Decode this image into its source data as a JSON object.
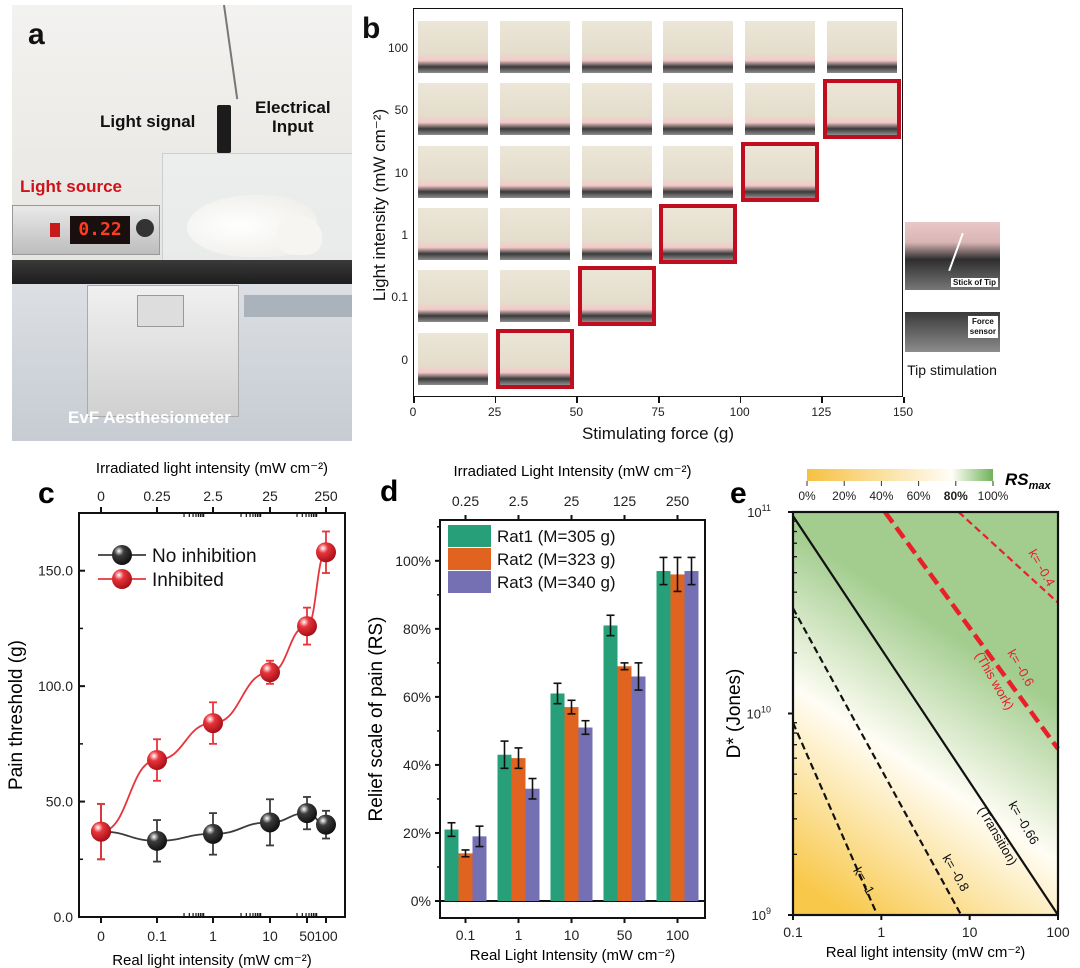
{
  "panels": {
    "a": {
      "letter": "a",
      "labels": {
        "light_signal": "Light signal",
        "electrical_input_line1": "Electrical",
        "electrical_input_line2": "Input",
        "light_source": "Light source",
        "display_value": "0.22",
        "aesthesiometer": "EvF Aesthesiometer"
      },
      "colors": {
        "light_source_label": "#d0121b",
        "display": "#ff3b22"
      }
    },
    "b": {
      "letter": "b",
      "xlabel": "Stimulating force (g)",
      "ylabel": "Light intensity (mW cm⁻²)",
      "x_ticks": [
        "0",
        "25",
        "50",
        "75",
        "100",
        "125",
        "150"
      ],
      "y_ticks": [
        "100",
        "50",
        "10",
        "1",
        "0.1",
        "0"
      ],
      "rows": [
        {
          "intensity": "100",
          "thumb_count": 6,
          "threshold_index": null
        },
        {
          "intensity": "50",
          "thumb_count": 6,
          "threshold_index": 5
        },
        {
          "intensity": "10",
          "thumb_count": 5,
          "threshold_index": 4
        },
        {
          "intensity": "1",
          "thumb_count": 4,
          "threshold_index": 3
        },
        {
          "intensity": "0.1",
          "thumb_count": 3,
          "threshold_index": 2
        },
        {
          "intensity": "0",
          "thumb_count": 2,
          "threshold_index": 1
        }
      ],
      "inset": {
        "stick_label": "Stick of Tip",
        "sensor_label_line1": "Force",
        "sensor_label_line2": "sensor",
        "caption": "Tip stimulation"
      },
      "colors": {
        "highlight": "#c00d1f"
      }
    }
  },
  "chart_data": [
    {
      "id": "c",
      "letter": "c",
      "type": "line",
      "title": "",
      "xlabel": "Real light intensity (mW cm⁻²)",
      "x2label": "Irradiated light intensity (mW cm⁻²)",
      "ylabel": "Pain threshold (g)",
      "x": [
        "0",
        "0.1",
        "1",
        "10",
        "50",
        "100"
      ],
      "x_top_ticks": [
        "0",
        "0.25",
        "2.5",
        "25",
        "250"
      ],
      "y_ticks": [
        "0.0",
        "50.0",
        "100.0",
        "150.0"
      ],
      "ylim": [
        0,
        175
      ],
      "series": [
        {
          "name": "No inhibition",
          "color": "#3c3c3c",
          "values": [
            37,
            33,
            36,
            41,
            45,
            40
          ],
          "errors": [
            12,
            9,
            9,
            10,
            7,
            6
          ]
        },
        {
          "name": "Inhibited",
          "color": "#e8343b",
          "values": [
            37,
            68,
            84,
            106,
            126,
            158
          ],
          "errors": [
            12,
            9,
            9,
            5,
            8,
            9
          ]
        }
      ],
      "legend": "top-left"
    },
    {
      "id": "d",
      "letter": "d",
      "type": "bar",
      "xlabel": "Real Light Intensity (mW cm⁻²)",
      "x2label": "Irradiated Light Intensity (mW cm⁻²)",
      "ylabel": "Relief scale of pain (RS)",
      "categories": [
        "0.1",
        "1",
        "10",
        "50",
        "100"
      ],
      "top_categories": [
        "0.25",
        "2.5",
        "25",
        "125",
        "250"
      ],
      "y_ticks": [
        "0%",
        "20%",
        "40%",
        "60%",
        "80%",
        "100%"
      ],
      "ylim": [
        -5,
        112
      ],
      "series": [
        {
          "name": "Rat1 (M=305 g)",
          "color": "#27a07a",
          "values": [
            21,
            43,
            61,
            81,
            97
          ],
          "errors": [
            2,
            4,
            3,
            3,
            4
          ]
        },
        {
          "name": "Rat2 (M=323 g)",
          "color": "#e06420",
          "values": [
            14,
            42,
            57,
            69,
            96
          ],
          "errors": [
            1,
            3,
            2,
            1,
            5
          ]
        },
        {
          "name": "Rat3 (M=340 g)",
          "color": "#7570b3",
          "values": [
            19,
            33,
            51,
            66,
            97
          ],
          "errors": [
            3,
            3,
            2,
            4,
            4
          ]
        }
      ],
      "legend": "top-left"
    },
    {
      "id": "e",
      "letter": "e",
      "type": "heatmap",
      "xlabel": "Real light intensity (mW cm⁻²)",
      "ylabel": "D* (Jones)",
      "x_scale": "log",
      "y_scale": "log",
      "xlim": [
        0.1,
        100
      ],
      "ylim": [
        1000000000.0,
        100000000000.0
      ],
      "x_ticks": [
        "0.1",
        "1",
        "10",
        "100"
      ],
      "y_ticks": [
        {
          "base": "10",
          "exp": "9",
          "value": 1000000000.0
        },
        {
          "base": "10",
          "exp": "10",
          "value": 10000000000.0
        },
        {
          "base": "10",
          "exp": "11",
          "value": 100000000000.0
        }
      ],
      "colorbar": {
        "title_main": "RS",
        "title_sub": "max",
        "ticks": [
          "0%",
          "20%",
          "40%",
          "60%",
          "80%",
          "100%"
        ],
        "bold_tick": "80%",
        "colors": [
          "#f6c142",
          "#fffdf6",
          "#6fb35a"
        ]
      },
      "lines": [
        {
          "k": -1,
          "label": "k= -1",
          "style": "dashed",
          "color": "#111111",
          "x_at_ymin": 0.9
        },
        {
          "k": -0.8,
          "label": "k= -0.8",
          "style": "dashed",
          "color": "#111111",
          "x_at_ymin": 8
        },
        {
          "k": -0.66,
          "label": "k= -0.66",
          "label2": "(Transition)",
          "style": "solid",
          "color": "#111111",
          "x_at_ymin": 100
        },
        {
          "k": -0.6,
          "label": "k= -0.6",
          "label2": "(This work)",
          "style": "thick-dashed",
          "color": "#e8202a",
          "x_at_ymax": 1.1
        },
        {
          "k": -0.4,
          "label": "k= -0.4",
          "style": "dashed",
          "color": "#e8202a",
          "x_at_ymax": 7.5
        }
      ]
    }
  ]
}
